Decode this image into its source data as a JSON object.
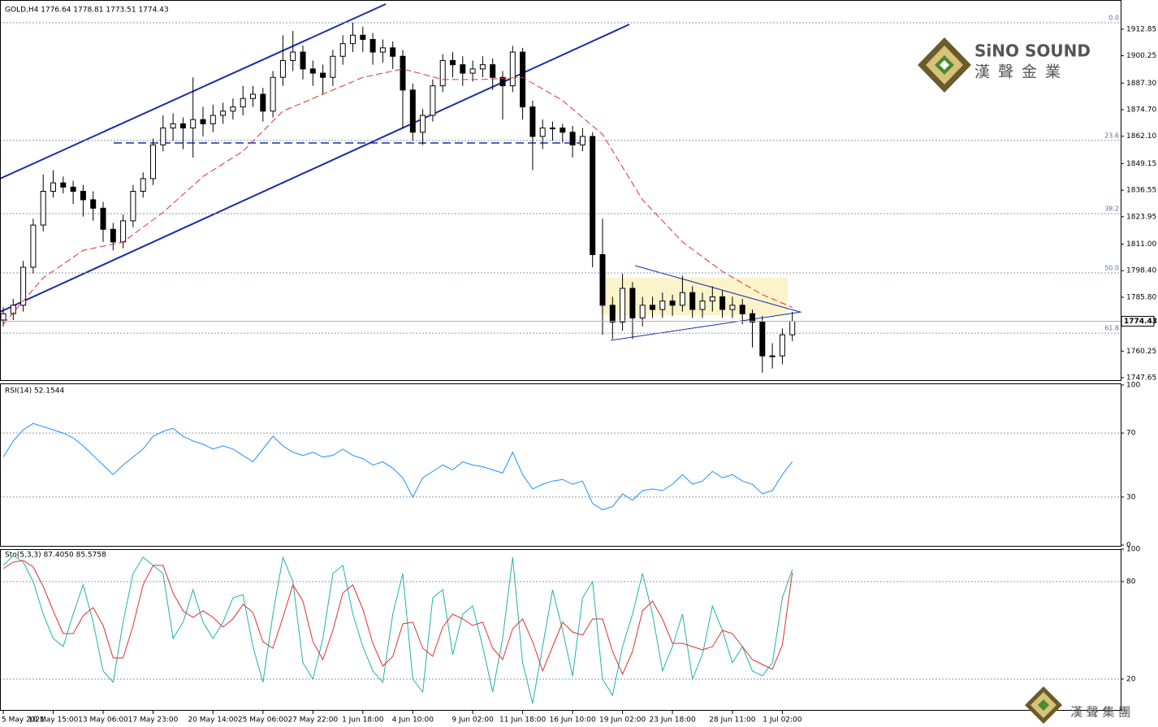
{
  "chart_data": [
    {
      "type": "candlestick",
      "title": "GOLD,H4  1776.64 1778.81 1773.51 1774.43",
      "open": [
        1775,
        1778,
        1782,
        1800,
        1820,
        1836,
        1840,
        1838,
        1836,
        1832,
        1828,
        1818,
        1812,
        1822,
        1836,
        1842,
        1858,
        1866,
        1868,
        1866,
        1870,
        1868,
        1872,
        1874,
        1876,
        1880,
        1882,
        1874,
        1890,
        1898,
        1902,
        1894,
        1892,
        1890,
        1900,
        1906,
        1910,
        1908,
        1902,
        1904,
        1900,
        1884,
        1864,
        1872,
        1886,
        1898,
        1896,
        1892,
        1894,
        1896,
        1890,
        1886,
        1902,
        1876,
        1862,
        1866,
        1866,
        1864,
        1858,
        1862,
        1806,
        1782,
        1774,
        1790,
        1776,
        1782,
        1780,
        1784,
        1782,
        1788,
        1780,
        1784,
        1786,
        1780,
        1782,
        1778,
        1774,
        1758,
        1758,
        1768
      ],
      "high": [
        1781,
        1785,
        1803,
        1823,
        1844,
        1846,
        1843,
        1841,
        1839,
        1836,
        1831,
        1821,
        1825,
        1839,
        1845,
        1861,
        1872,
        1873,
        1871,
        1890,
        1876,
        1877,
        1878,
        1880,
        1886,
        1886,
        1885,
        1893,
        1910,
        1912,
        1905,
        1898,
        1896,
        1903,
        1910,
        1916,
        1914,
        1911,
        1908,
        1907,
        1903,
        1887,
        1875,
        1889,
        1901,
        1902,
        1900,
        1898,
        1900,
        1899,
        1893,
        1905,
        1904,
        1879,
        1870,
        1869,
        1868,
        1867,
        1866,
        1864,
        1823,
        1786,
        1797,
        1793,
        1786,
        1786,
        1788,
        1787,
        1796,
        1791,
        1788,
        1791,
        1789,
        1786,
        1785,
        1780,
        1777,
        1764,
        1771,
        1778.81
      ],
      "low": [
        1772,
        1775,
        1779,
        1797,
        1817,
        1833,
        1835,
        1830,
        1824,
        1822,
        1812,
        1808,
        1809,
        1819,
        1833,
        1839,
        1855,
        1860,
        1856,
        1852,
        1862,
        1864,
        1868,
        1870,
        1872,
        1876,
        1869,
        1871,
        1886,
        1893,
        1889,
        1886,
        1882,
        1886,
        1896,
        1902,
        1902,
        1896,
        1897,
        1894,
        1866,
        1860,
        1858,
        1869,
        1883,
        1890,
        1886,
        1888,
        1890,
        1884,
        1870,
        1883,
        1870,
        1846,
        1856,
        1860,
        1859,
        1852,
        1855,
        1800,
        1768,
        1766,
        1770,
        1766,
        1772,
        1776,
        1776,
        1777,
        1779,
        1776,
        1776,
        1779,
        1776,
        1776,
        1773,
        1762,
        1750,
        1752,
        1754,
        1765
      ],
      "close": [
        1778,
        1782,
        1800,
        1820,
        1836,
        1840,
        1838,
        1836,
        1832,
        1828,
        1818,
        1812,
        1822,
        1836,
        1842,
        1858,
        1866,
        1868,
        1866,
        1870,
        1868,
        1872,
        1874,
        1876,
        1880,
        1882,
        1874,
        1890,
        1898,
        1902,
        1894,
        1892,
        1890,
        1900,
        1906,
        1910,
        1908,
        1902,
        1904,
        1900,
        1884,
        1864,
        1872,
        1886,
        1898,
        1896,
        1892,
        1894,
        1896,
        1890,
        1886,
        1902,
        1876,
        1862,
        1866,
        1866,
        1864,
        1858,
        1862,
        1806,
        1782,
        1774,
        1790,
        1776,
        1782,
        1780,
        1784,
        1782,
        1788,
        1780,
        1784,
        1786,
        1780,
        1782,
        1778,
        1774,
        1758,
        1758,
        1768,
        1774.43
      ],
      "ma": {
        "x": [
          0,
          4,
          8,
          12,
          16,
          20,
          24,
          28,
          32,
          36,
          40,
          44,
          48,
          52,
          56,
          60,
          64,
          68,
          72,
          76,
          79
        ],
        "values": [
          1773,
          1795,
          1808,
          1812,
          1826,
          1843,
          1855,
          1874,
          1882,
          1890,
          1894,
          1889,
          1889,
          1890,
          1879,
          1863,
          1832,
          1812,
          1798,
          1787,
          1781
        ],
        "color": "#e0302c"
      },
      "fib_levels": [
        {
          "value": 1915.9,
          "label": "0.0"
        },
        {
          "value": 1860.1,
          "label": "23.6"
        },
        {
          "value": 1825.4,
          "label": "38.2"
        },
        {
          "value": 1797.3,
          "label": "50.0"
        },
        {
          "value": 1768.8,
          "label": "61.8"
        }
      ],
      "ylim": [
        1746.5,
        1925.9
      ],
      "yticks": [
        1912.85,
        1900.25,
        {
          "value": 1887.3,
          "label": "1887.30"
        },
        {
          "value": 1874.7,
          "label": "1874.70"
        },
        {
          "value": 1862.1,
          "label": "1862.10"
        },
        1849.15,
        1836.55,
        1823.95,
        {
          "value": 1811,
          "label": "1811.00"
        },
        {
          "value": 1798.4,
          "label": "1798.40"
        },
        {
          "value": 1785.8,
          "label": "1785.80"
        },
        1760.25,
        1747.65
      ],
      "xticks": [
        {
          "value": 0,
          "label": "5 May 2021"
        },
        {
          "value": 5,
          "label": "10 May 15:00"
        },
        {
          "value": 10,
          "label": "13 May 06:00"
        },
        {
          "value": 15,
          "label": "17 May 23:00"
        },
        {
          "value": 21,
          "label": "20 May 14:00"
        },
        {
          "value": 26,
          "label": "25 May 06:00"
        },
        {
          "value": 31,
          "label": "27 May 22:00"
        },
        {
          "value": 36,
          "label": "1 Jun 18:00"
        },
        {
          "value": 41,
          "label": "4 Jun 10:00"
        },
        {
          "value": 47,
          "label": "9 Jun 02:00"
        },
        {
          "value": 52,
          "label": "11 Jun 18:00"
        },
        {
          "value": 57,
          "label": "16 Jun 10:00"
        },
        {
          "value": 62,
          "label": "19 Jun 02:00"
        },
        {
          "value": 67,
          "label": "23 Jun 18:00"
        },
        {
          "value": 73,
          "label": "28 Jun 11:00"
        },
        {
          "value": 78,
          "label": "1 Jul 02:00"
        }
      ],
      "logo": {
        "name": "SiNO SOUND",
        "subtitle": "漢聲金業",
        "footer": "漢 聲 集 團"
      }
    },
    {
      "type": "line",
      "title": "RSI(14) 52.1544",
      "color": "#1e90ff",
      "values": [
        55,
        65,
        72,
        76,
        74,
        72,
        70,
        67,
        62,
        56,
        50,
        44,
        50,
        55,
        60,
        68,
        71,
        73,
        68,
        65,
        63,
        60,
        62,
        60,
        56,
        52,
        60,
        68,
        62,
        58,
        56,
        58,
        55,
        56,
        60,
        56,
        54,
        50,
        52,
        48,
        42,
        30,
        42,
        46,
        50,
        47,
        52,
        50,
        49,
        47,
        45,
        58,
        44,
        35,
        38,
        40,
        41,
        38,
        40,
        26,
        22,
        24,
        32,
        28,
        34,
        35,
        34,
        38,
        44,
        38,
        40,
        46,
        42,
        44,
        40,
        38,
        32,
        34,
        44,
        52.15
      ],
      "ylim": [
        0,
        100
      ],
      "yticks": [
        0,
        30,
        70,
        100
      ],
      "grid": true
    },
    {
      "type": "line",
      "title": "Sto(5,3,3) 87.4050 85.5758",
      "series": [
        {
          "color": "#20b2aa",
          "values": [
            90,
            96,
            92,
            80,
            60,
            45,
            40,
            60,
            78,
            55,
            25,
            18,
            55,
            85,
            95,
            90,
            85,
            45,
            55,
            75,
            55,
            45,
            55,
            70,
            72,
            40,
            18,
            60,
            95,
            80,
            30,
            20,
            45,
            85,
            90,
            60,
            40,
            25,
            18,
            60,
            85,
            20,
            12,
            70,
            75,
            35,
            60,
            65,
            40,
            12,
            45,
            95,
            30,
            5,
            40,
            75,
            50,
            22,
            70,
            80,
            20,
            10,
            40,
            60,
            85,
            60,
            25,
            40,
            60,
            20,
            35,
            65,
            50,
            30,
            40,
            25,
            22,
            30,
            70,
            87.405
          ]
        },
        {
          "color": "#e0302c",
          "values": [
            88,
            92,
            93,
            89,
            77,
            62,
            48,
            48,
            59,
            64,
            53,
            33,
            33,
            53,
            78,
            90,
            90,
            73,
            62,
            58,
            62,
            58,
            52,
            57,
            66,
            61,
            43,
            39,
            58,
            78,
            68,
            43,
            32,
            50,
            73,
            78,
            63,
            42,
            28,
            34,
            54,
            55,
            39,
            34,
            52,
            60,
            57,
            53,
            55,
            39,
            32,
            51,
            57,
            43,
            25,
            40,
            55,
            49,
            47,
            57,
            57,
            37,
            23,
            37,
            62,
            68,
            57,
            42,
            42,
            40,
            38,
            40,
            50,
            48,
            40,
            32,
            29,
            26,
            41,
            85.5758
          ]
        }
      ],
      "ylim": [
        0,
        100
      ],
      "yticks": [
        20,
        80,
        100
      ],
      "grid": true
    }
  ]
}
